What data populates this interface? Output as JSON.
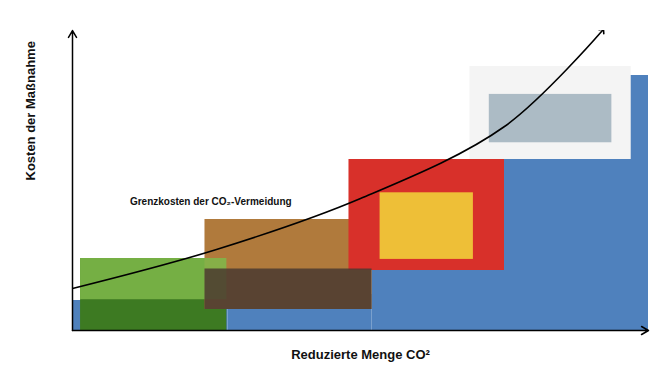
{
  "chart_data": {
    "type": "bar",
    "x_label": "Reduzierte Menge CO²",
    "y_label": "Kosten der Maßnahme",
    "bins": [
      0,
      27,
      52,
      75,
      100
    ],
    "values": [
      10,
      12,
      20,
      85
    ],
    "color": "#4f81bd",
    "curve": {
      "x": [
        0,
        25,
        50,
        75,
        92
      ],
      "y": [
        14,
        27,
        44,
        68,
        100
      ]
    },
    "annotations": [
      {
        "text": "Grenzkosten der CO₂-Vermeidung",
        "x": 24,
        "y": 43
      }
    ],
    "xlim": [
      0,
      100
    ],
    "ylim": [
      0,
      100
    ],
    "xticks": [],
    "yticks": [],
    "tick_labels": false,
    "grid": false
  }
}
